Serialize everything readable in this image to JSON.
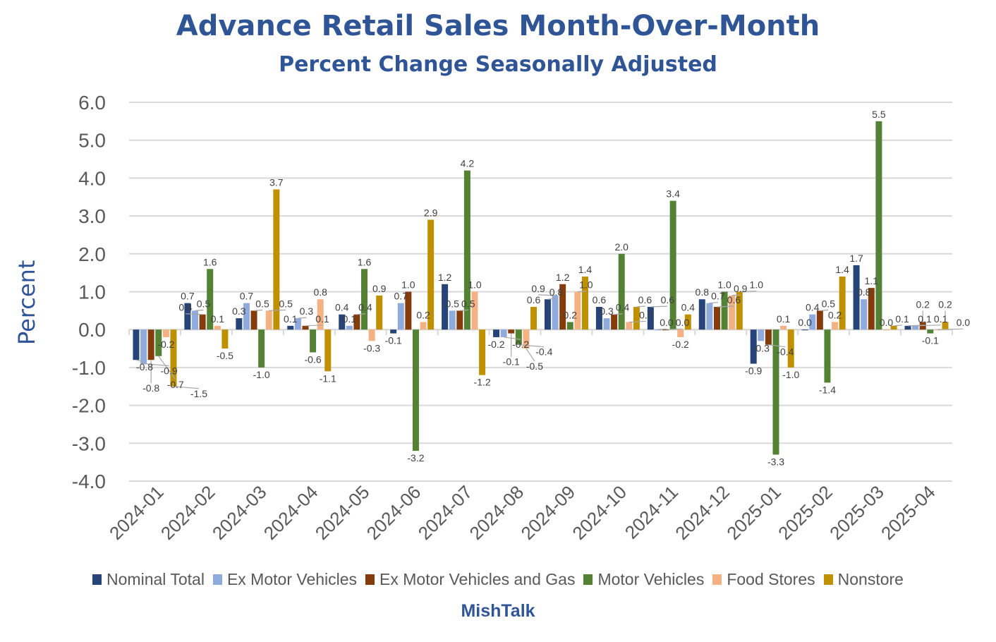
{
  "chart_data": {
    "type": "bar",
    "title": "Advance Retail Sales Month-Over-Month",
    "subtitle": "Percent Change Seasonally Adjusted",
    "xlabel": "",
    "ylabel": "Percent",
    "ylim": [
      -4.0,
      6.0
    ],
    "yticks": [
      "6.0",
      "5.0",
      "4.0",
      "3.0",
      "2.0",
      "1.0",
      "0.0",
      "-1.0",
      "-2.0",
      "-3.0",
      "-4.0"
    ],
    "grid": true,
    "legend_position": "bottom",
    "footer": "MishTalk",
    "categories": [
      "2024-01",
      "2024-02",
      "2024-03",
      "2024-04",
      "2024-05",
      "2024-06",
      "2024-07",
      "2024-08",
      "2024-09",
      "2024-10",
      "2024-11",
      "2024-12",
      "2025-01",
      "2025-02",
      "2025-03",
      "2025-04"
    ],
    "series": [
      {
        "name": "Nominal Total",
        "color": "#264478",
        "values": [
          -0.8,
          0.7,
          0.3,
          0.1,
          0.4,
          -0.1,
          1.2,
          -0.2,
          0.8,
          0.6,
          0.6,
          0.8,
          -0.9,
          0.0,
          1.7,
          0.1
        ]
      },
      {
        "name": "Ex Motor Vehicles",
        "color": "#8FAADC",
        "values": [
          -0.9,
          0.5,
          0.7,
          0.3,
          0.1,
          0.7,
          0.5,
          -0.2,
          0.9,
          0.3,
          0.0,
          0.7,
          -0.3,
          0.4,
          0.8,
          0.1
        ]
      },
      {
        "name": "Ex Motor Vehicles and Gas",
        "color": "#843C0C",
        "values": [
          -0.8,
          0.4,
          0.5,
          0.1,
          0.4,
          1.0,
          0.5,
          -0.1,
          1.2,
          0.4,
          0.0,
          0.6,
          -0.4,
          0.5,
          1.1,
          0.2
        ]
      },
      {
        "name": "Motor Vehicles",
        "color": "#548235",
        "values": [
          -0.7,
          1.6,
          -1.0,
          -0.6,
          1.6,
          -3.2,
          4.2,
          -0.4,
          0.2,
          2.0,
          3.4,
          1.0,
          -3.3,
          -1.4,
          5.5,
          -0.1
        ]
      },
      {
        "name": "Food Stores",
        "color": "#F4B183",
        "values": [
          -0.2,
          0.1,
          0.5,
          0.8,
          -0.3,
          0.2,
          1.0,
          -0.5,
          1.0,
          0.2,
          -0.2,
          0.9,
          0.1,
          0.2,
          0.0,
          0.0
        ]
      },
      {
        "name": "Nonstore",
        "color": "#BF9000",
        "values": [
          -1.5,
          -0.5,
          3.7,
          -1.1,
          0.9,
          2.9,
          -1.2,
          0.6,
          1.4,
          0.6,
          0.4,
          1.0,
          -1.0,
          1.4,
          0.1,
          0.2
        ]
      }
    ]
  }
}
